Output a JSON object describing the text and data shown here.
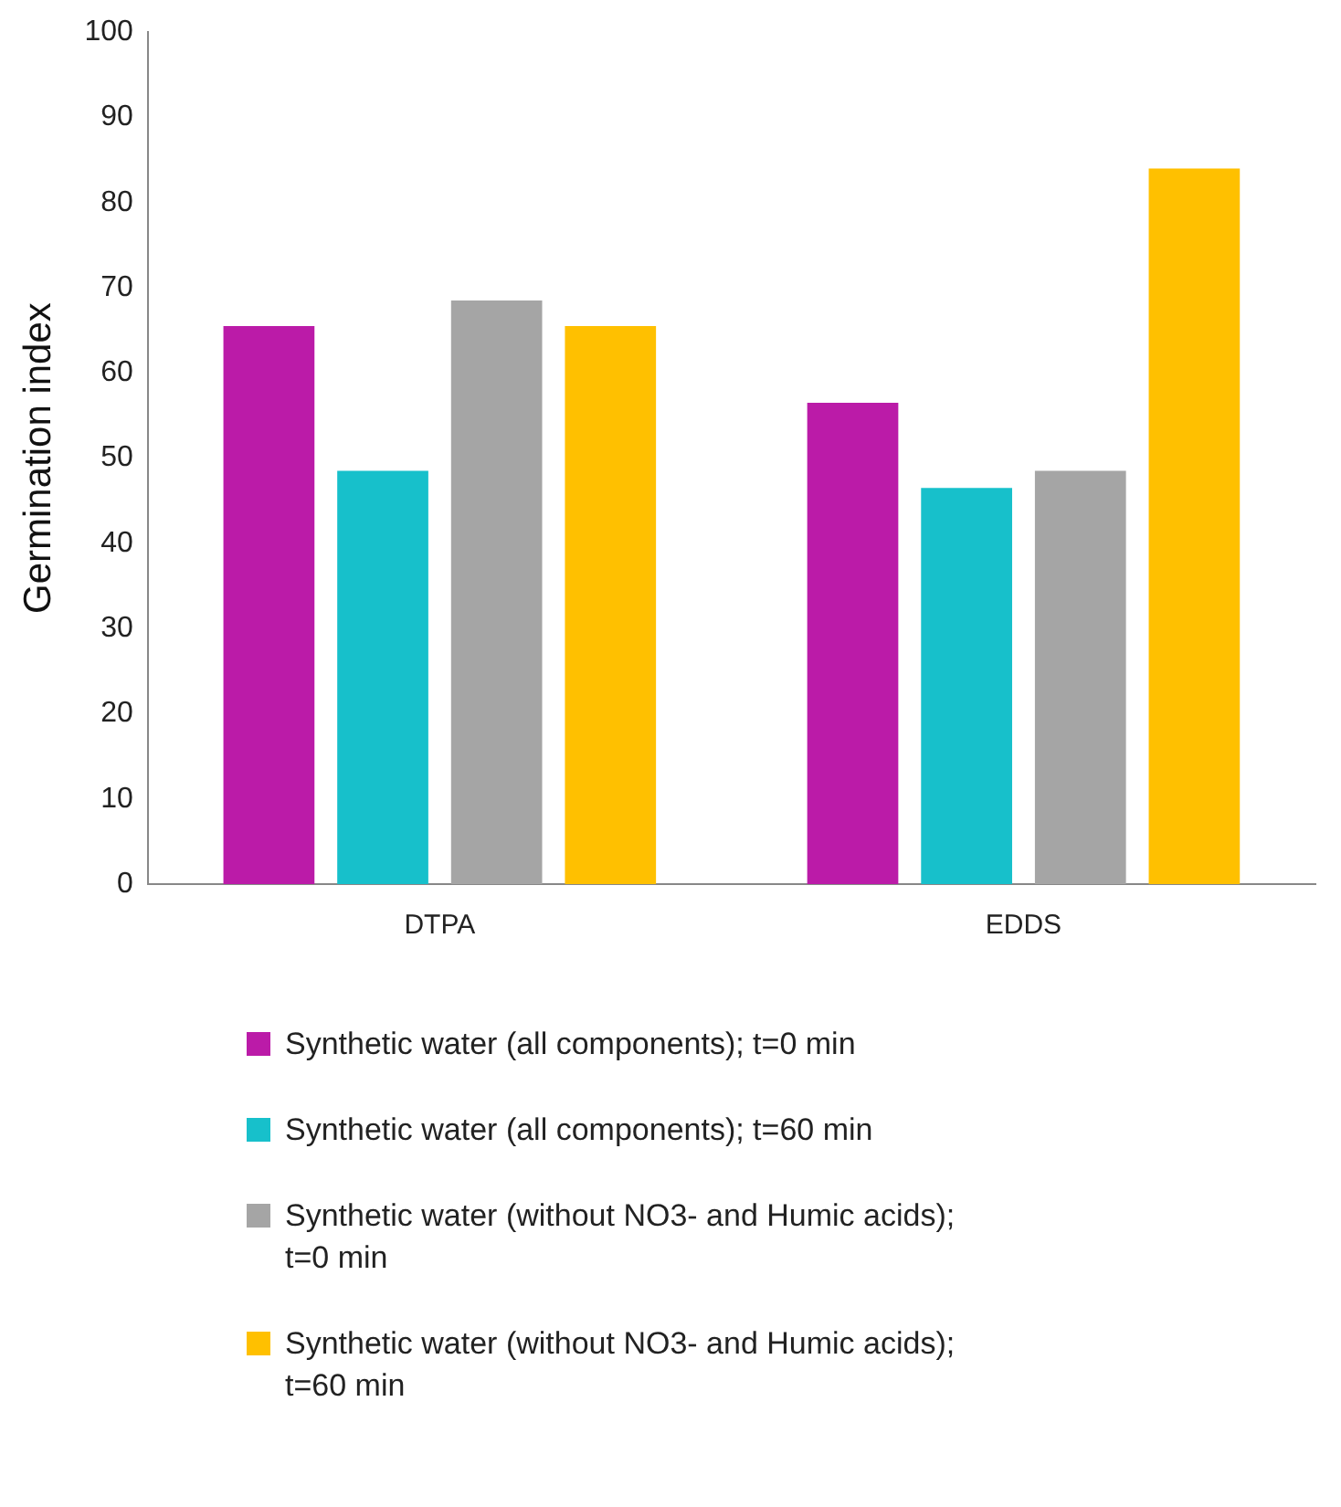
{
  "chart_data": {
    "type": "bar",
    "ylabel": "Germination index",
    "categories": [
      "DTPA",
      "EDDS"
    ],
    "series": [
      {
        "name": "Synthetic water (all components); t=0 min",
        "color": "#bb1ba8",
        "values": [
          65.5,
          56.5
        ]
      },
      {
        "name": "Synthetic water (all components); t=60 min",
        "color": "#17c0cb",
        "values": [
          48.5,
          46.5
        ]
      },
      {
        "name": "Synthetic water (without NO3- and Humic acids); t=0 min",
        "color": "#a5a5a5",
        "values": [
          68.5,
          48.5
        ]
      },
      {
        "name": "Synthetic water (without NO3- and Humic acids); t=60 min",
        "color": "#ffc000",
        "values": [
          65.5,
          84
        ]
      }
    ],
    "ylim": [
      0,
      100
    ],
    "yticks": [
      0,
      10,
      20,
      30,
      40,
      50,
      60,
      70,
      80,
      90,
      100
    ],
    "grid": false,
    "legend": "bottom"
  }
}
